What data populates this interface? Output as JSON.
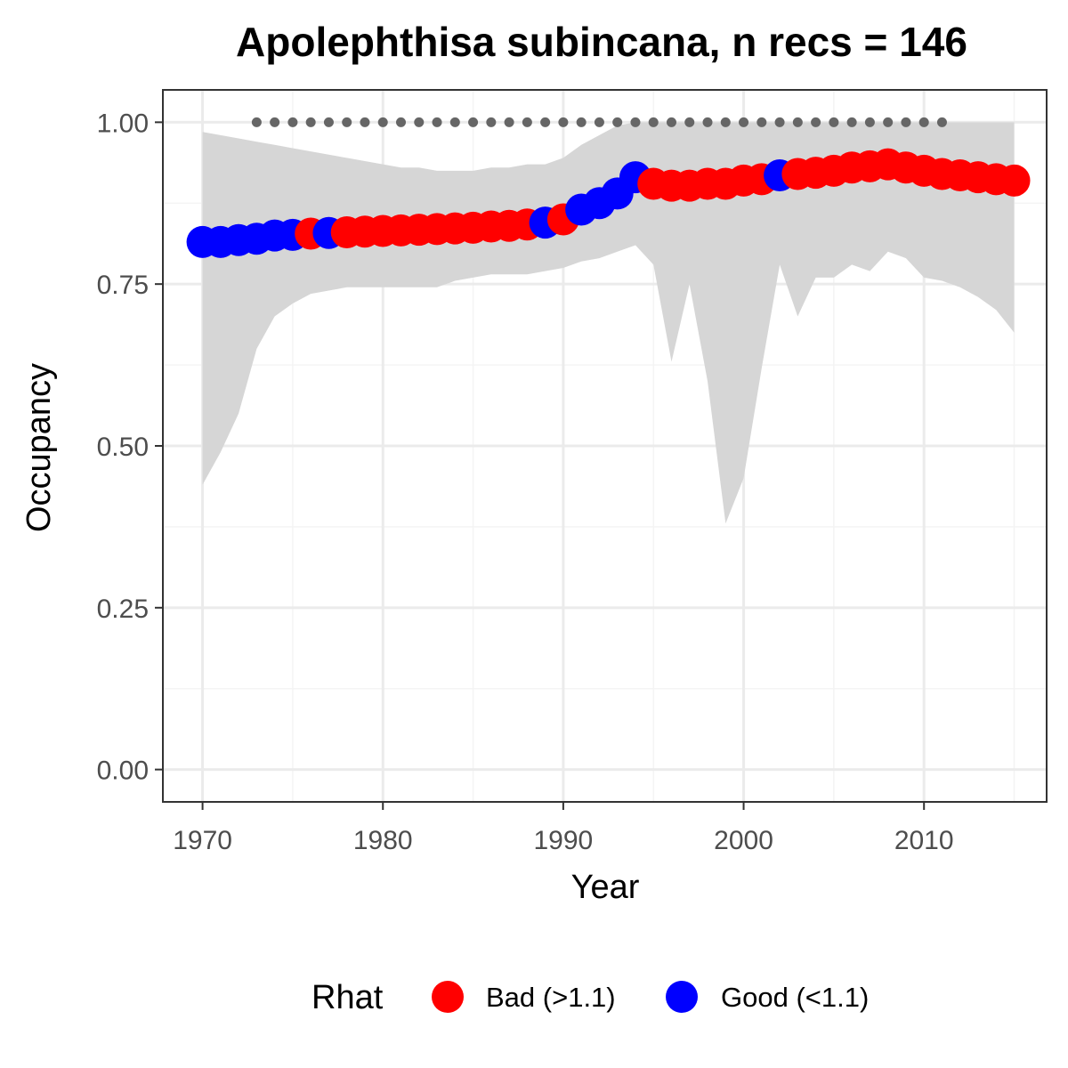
{
  "chart_data": {
    "type": "line",
    "title": "Apolephthisa subincana, n recs = 146",
    "xlabel": "Year",
    "ylabel": "Occupancy",
    "xlim": [
      1967.8,
      2016.8
    ],
    "ylim": [
      -0.05,
      1.05
    ],
    "x_ticks": [
      1970,
      1980,
      1990,
      2000,
      2010
    ],
    "x_tick_labels": [
      "1970",
      "1980",
      "1990",
      "2000",
      "2010"
    ],
    "y_ticks": [
      0,
      0.25,
      0.5,
      0.75,
      1
    ],
    "y_tick_labels": [
      "0.00",
      "0.25",
      "0.50",
      "0.75",
      "1.00"
    ],
    "grid": true,
    "ribbon": {
      "x": [
        1970,
        1971,
        1972,
        1973,
        1974,
        1975,
        1976,
        1977,
        1978,
        1979,
        1980,
        1981,
        1982,
        1983,
        1984,
        1985,
        1986,
        1987,
        1988,
        1989,
        1990,
        1991,
        1992,
        1993,
        1994,
        1995,
        1996,
        1997,
        1998,
        1999,
        2000,
        2001,
        2002,
        2003,
        2004,
        2005,
        2006,
        2007,
        2008,
        2009,
        2010,
        2011,
        2012,
        2013,
        2014,
        2015
      ],
      "lower": [
        0.44,
        0.49,
        0.55,
        0.65,
        0.7,
        0.72,
        0.735,
        0.74,
        0.745,
        0.745,
        0.745,
        0.745,
        0.745,
        0.745,
        0.755,
        0.76,
        0.765,
        0.765,
        0.765,
        0.77,
        0.775,
        0.785,
        0.79,
        0.8,
        0.81,
        0.78,
        0.63,
        0.75,
        0.6,
        0.38,
        0.45,
        0.62,
        0.78,
        0.7,
        0.76,
        0.76,
        0.78,
        0.77,
        0.8,
        0.79,
        0.76,
        0.755,
        0.745,
        0.73,
        0.71,
        0.675
      ],
      "upper": [
        0.985,
        0.98,
        0.975,
        0.97,
        0.965,
        0.96,
        0.955,
        0.95,
        0.945,
        0.94,
        0.935,
        0.93,
        0.93,
        0.925,
        0.925,
        0.925,
        0.93,
        0.93,
        0.935,
        0.935,
        0.945,
        0.965,
        0.98,
        0.995,
        1.0,
        1.0,
        1.0,
        1.0,
        1.0,
        1.0,
        1.0,
        1.0,
        1.0,
        1.0,
        1.0,
        1.0,
        1.0,
        1.0,
        1.0,
        1.0,
        1.0,
        1.0,
        1.0,
        1.0,
        1.0,
        1.0
      ]
    },
    "series": [
      {
        "name": "Occupancy",
        "x": [
          1970,
          1971,
          1972,
          1973,
          1974,
          1975,
          1976,
          1977,
          1978,
          1979,
          1980,
          1981,
          1982,
          1983,
          1984,
          1985,
          1986,
          1987,
          1988,
          1989,
          1990,
          1991,
          1992,
          1993,
          1994,
          1995,
          1996,
          1997,
          1998,
          1999,
          2000,
          2001,
          2002,
          2003,
          2004,
          2005,
          2006,
          2007,
          2008,
          2009,
          2010,
          2011,
          2012,
          2013,
          2014,
          2015
        ],
        "values": [
          0.815,
          0.815,
          0.818,
          0.82,
          0.825,
          0.826,
          0.828,
          0.829,
          0.83,
          0.831,
          0.832,
          0.833,
          0.834,
          0.835,
          0.836,
          0.837,
          0.839,
          0.84,
          0.842,
          0.845,
          0.85,
          0.865,
          0.875,
          0.89,
          0.915,
          0.905,
          0.902,
          0.902,
          0.905,
          0.905,
          0.91,
          0.912,
          0.918,
          0.92,
          0.922,
          0.925,
          0.93,
          0.932,
          0.935,
          0.93,
          0.925,
          0.92,
          0.918,
          0.915,
          0.912,
          0.91
        ],
        "rhat": [
          "Good",
          "Good",
          "Good",
          "Good",
          "Good",
          "Good",
          "Bad",
          "Good",
          "Bad",
          "Bad",
          "Bad",
          "Bad",
          "Bad",
          "Bad",
          "Bad",
          "Bad",
          "Bad",
          "Bad",
          "Bad",
          "Good",
          "Bad",
          "Good",
          "Good",
          "Good",
          "Good",
          "Bad",
          "Bad",
          "Bad",
          "Bad",
          "Bad",
          "Bad",
          "Bad",
          "Good",
          "Bad",
          "Bad",
          "Bad",
          "Bad",
          "Bad",
          "Bad",
          "Bad",
          "Bad",
          "Bad",
          "Bad",
          "Bad",
          "Bad",
          "Bad"
        ]
      }
    ],
    "records": {
      "x": [
        1973,
        1974,
        1975,
        1976,
        1977,
        1978,
        1979,
        1980,
        1981,
        1982,
        1983,
        1984,
        1985,
        1986,
        1987,
        1988,
        1989,
        1990,
        1991,
        1992,
        1993,
        1994,
        1995,
        1996,
        1997,
        1998,
        1999,
        2000,
        2001,
        2002,
        2003,
        2004,
        2005,
        2006,
        2007,
        2008,
        2009,
        2010,
        2011
      ],
      "y": 1.0,
      "color": "#666666"
    },
    "legend": {
      "title": "Rhat",
      "position": "bottom",
      "items": [
        {
          "label": "Bad (>1.1)",
          "key": "Bad",
          "color": "#ff0000"
        },
        {
          "label": "Good (<1.1)",
          "key": "Good",
          "color": "#0000ff"
        }
      ]
    },
    "colors": {
      "ribbon": "#d6d6d6",
      "grid_major": "#ebebeb",
      "grid_minor": "#f4f4f4",
      "panel_border": "#333333"
    }
  }
}
